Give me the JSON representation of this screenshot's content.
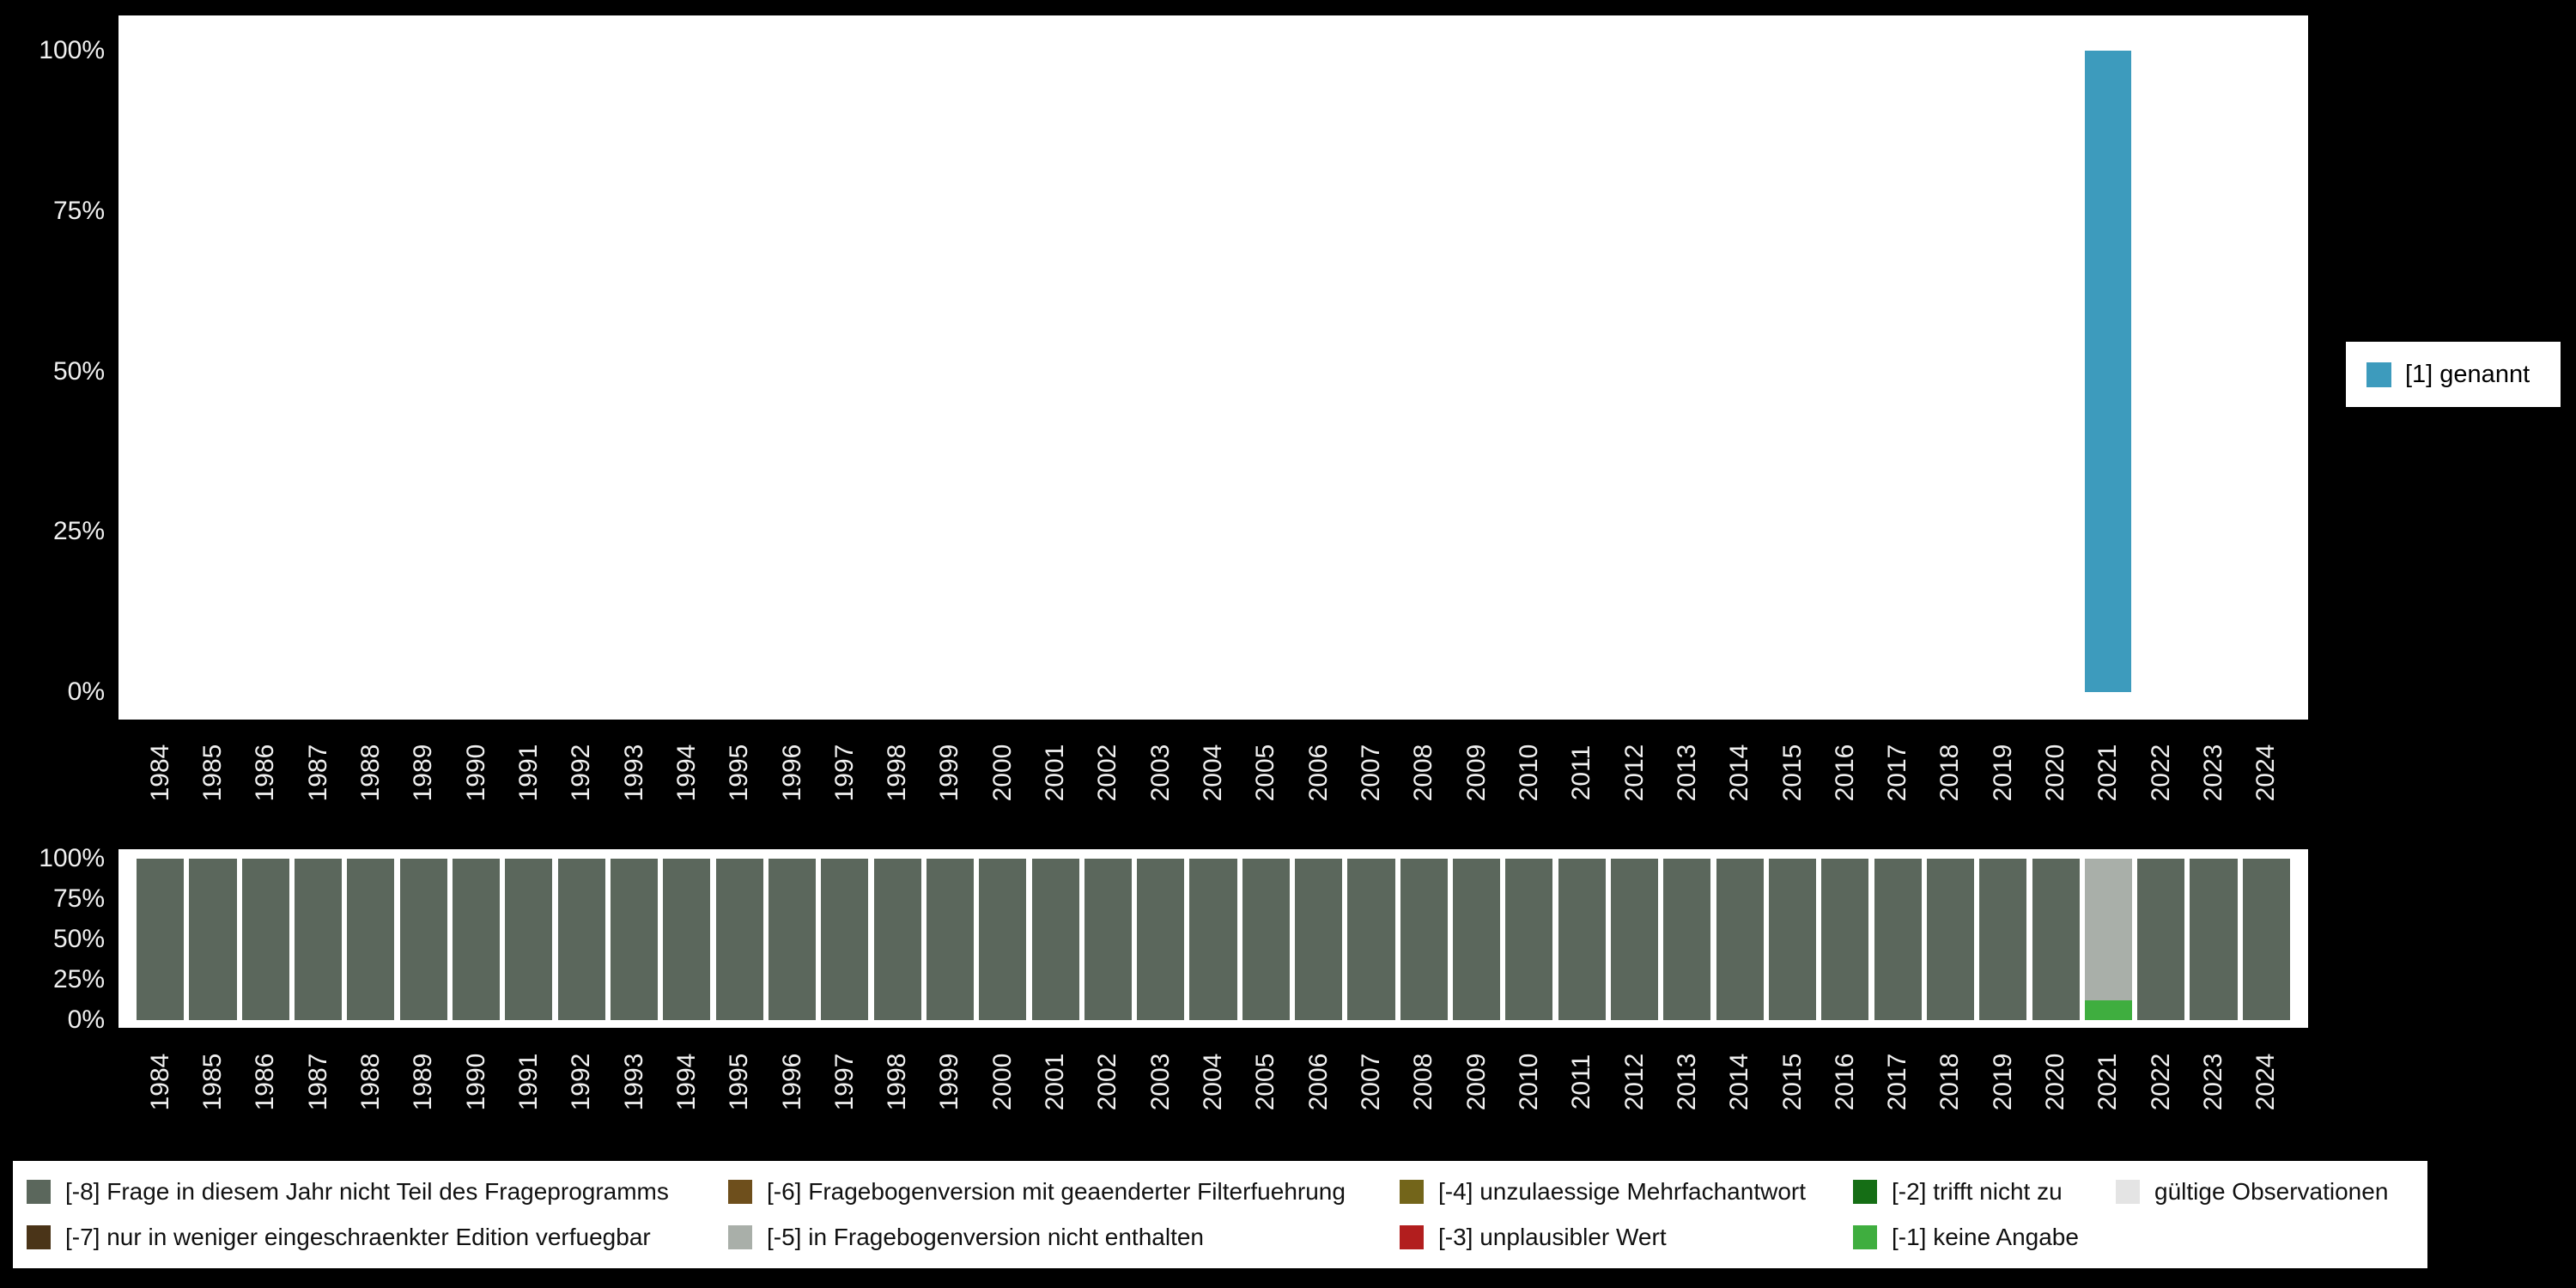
{
  "colors": {
    "background": "#000000",
    "panel": "#ffffff",
    "axis_text": "#f0f0f0",
    "bar_main": "#3d9bbd"
  },
  "chart_data": [
    {
      "name": "frequencies",
      "type": "bar",
      "title": "",
      "xlabel": "",
      "ylabel": "",
      "ylim": [
        0,
        100
      ],
      "grid": false,
      "legend_position": "right",
      "x": [
        "1984",
        "1985",
        "1986",
        "1987",
        "1988",
        "1989",
        "1990",
        "1991",
        "1992",
        "1993",
        "1994",
        "1995",
        "1996",
        "1997",
        "1998",
        "1999",
        "2000",
        "2001",
        "2002",
        "2003",
        "2004",
        "2005",
        "2006",
        "2007",
        "2008",
        "2009",
        "2010",
        "2011",
        "2012",
        "2013",
        "2014",
        "2015",
        "2016",
        "2017",
        "2018",
        "2019",
        "2020",
        "2021",
        "2022",
        "2023",
        "2024"
      ],
      "y_ticks": [
        0,
        25,
        50,
        75,
        100
      ],
      "y_tick_labels": [
        "0%",
        "25%",
        "50%",
        "75%",
        "100%"
      ],
      "series": [
        {
          "key": "genannt",
          "name": "[1] genannt",
          "color": "#3d9bbd",
          "values": [
            0,
            0,
            0,
            0,
            0,
            0,
            0,
            0,
            0,
            0,
            0,
            0,
            0,
            0,
            0,
            0,
            0,
            0,
            0,
            0,
            0,
            0,
            0,
            0,
            0,
            0,
            0,
            0,
            0,
            0,
            0,
            0,
            0,
            0,
            0,
            0,
            0,
            100,
            0,
            0,
            0
          ]
        }
      ]
    },
    {
      "name": "missings",
      "type": "stacked-bar",
      "title": "",
      "xlabel": "",
      "ylabel": "",
      "ylim": [
        0,
        100
      ],
      "grid": false,
      "legend_position": "bottom",
      "x": [
        "1984",
        "1985",
        "1986",
        "1987",
        "1988",
        "1989",
        "1990",
        "1991",
        "1992",
        "1993",
        "1994",
        "1995",
        "1996",
        "1997",
        "1998",
        "1999",
        "2000",
        "2001",
        "2002",
        "2003",
        "2004",
        "2005",
        "2006",
        "2007",
        "2008",
        "2009",
        "2010",
        "2011",
        "2012",
        "2013",
        "2014",
        "2015",
        "2016",
        "2017",
        "2018",
        "2019",
        "2020",
        "2021",
        "2022",
        "2023",
        "2024"
      ],
      "y_ticks": [
        0,
        25,
        50,
        75,
        100
      ],
      "y_tick_labels": [
        "0%",
        "25%",
        "50%",
        "75%",
        "100%"
      ],
      "series": [
        {
          "key": "keine-angabe",
          "name": "[-1] keine Angabe",
          "color": "#3fae3f",
          "values": [
            0,
            0,
            0,
            0,
            0,
            0,
            0,
            0,
            0,
            0,
            0,
            0,
            0,
            0,
            0,
            0,
            0,
            0,
            0,
            0,
            0,
            0,
            0,
            0,
            0,
            0,
            0,
            0,
            0,
            0,
            0,
            0,
            0,
            0,
            0,
            0,
            0,
            12,
            0,
            0,
            0
          ]
        },
        {
          "key": "nicht-enthalten",
          "name": "[-5] in Fragebogenversion nicht enthalten",
          "color": "#a9afa9",
          "values": [
            0,
            0,
            0,
            0,
            0,
            0,
            0,
            0,
            0,
            0,
            0,
            0,
            0,
            0,
            0,
            0,
            0,
            0,
            0,
            0,
            0,
            0,
            0,
            0,
            0,
            0,
            0,
            0,
            0,
            0,
            0,
            0,
            0,
            0,
            0,
            0,
            0,
            88,
            0,
            0,
            0
          ]
        },
        {
          "key": "nicht-teil",
          "name": "[-8] Frage in diesem Jahr nicht Teil des Frageprogramms",
          "color": "#5b675c",
          "values": [
            100,
            100,
            100,
            100,
            100,
            100,
            100,
            100,
            100,
            100,
            100,
            100,
            100,
            100,
            100,
            100,
            100,
            100,
            100,
            100,
            100,
            100,
            100,
            100,
            100,
            100,
            100,
            100,
            100,
            100,
            100,
            100,
            100,
            100,
            100,
            100,
            100,
            0,
            100,
            100,
            100
          ]
        }
      ]
    }
  ],
  "missing_legend": {
    "columns": [
      {
        "items": [
          {
            "key": "minus8",
            "label": "[-8] Frage in diesem Jahr nicht Teil des Frageprogramms",
            "color": "#5b675c"
          },
          {
            "key": "minus7",
            "label": "[-7] nur in weniger eingeschraenkter Edition verfuegbar",
            "color": "#4a3418"
          }
        ]
      },
      {
        "items": [
          {
            "key": "minus6",
            "label": "[-6] Fragebogenversion mit geaenderter Filterfuehrung",
            "color": "#6e4f1c"
          },
          {
            "key": "minus5",
            "label": "[-5] in Fragebogenversion nicht enthalten",
            "color": "#a9afa9"
          }
        ]
      },
      {
        "items": [
          {
            "key": "minus4",
            "label": "[-4] unzulaessige Mehrfachantwort",
            "color": "#73651a"
          },
          {
            "key": "minus3",
            "label": "[-3] unplausibler Wert",
            "color": "#b21e1e"
          }
        ]
      },
      {
        "items": [
          {
            "key": "minus2",
            "label": "[-2] trifft nicht zu",
            "color": "#156e15"
          },
          {
            "key": "minus1",
            "label": "[-1] keine Angabe",
            "color": "#3fae3f"
          }
        ]
      },
      {
        "items": [
          {
            "key": "valid",
            "label": "gültige Observationen",
            "color": "#e4e4e4"
          }
        ]
      }
    ]
  }
}
